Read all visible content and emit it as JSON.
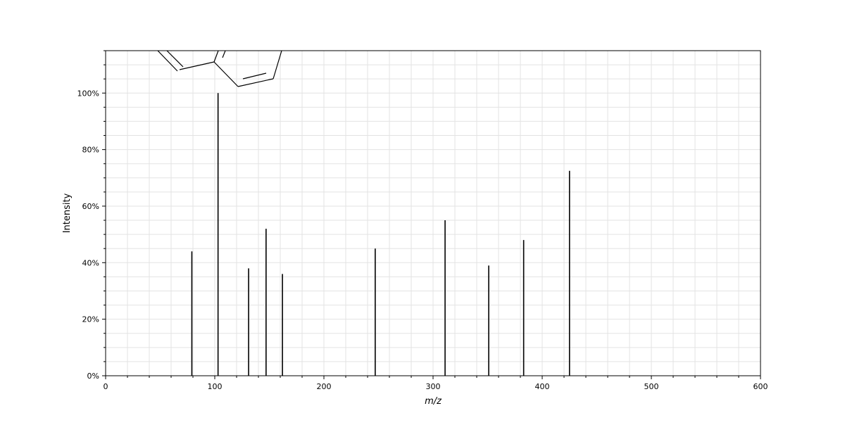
{
  "chart_data": {
    "type": "bar",
    "subtype": "mass-spectrum-stick",
    "xlabel": "m/z",
    "ylabel": "Intensity",
    "xlim": [
      0,
      600
    ],
    "ylim": [
      0,
      115
    ],
    "x_ticks": [
      0,
      100,
      200,
      300,
      400,
      500,
      600
    ],
    "x_tick_labels": [
      "0",
      "100",
      "200",
      "300",
      "400",
      "500",
      "600"
    ],
    "y_ticks": [
      0,
      20,
      40,
      60,
      80,
      100
    ],
    "y_tick_labels": [
      "0%",
      "20%",
      "40%",
      "60%",
      "80%",
      "100%"
    ],
    "grid": true,
    "peak_color": "#000000",
    "peaks": [
      {
        "mz": 79,
        "intensity": 44
      },
      {
        "mz": 103,
        "intensity": 100
      },
      {
        "mz": 131,
        "intensity": 38
      },
      {
        "mz": 147,
        "intensity": 52
      },
      {
        "mz": 162,
        "intensity": 36
      },
      {
        "mz": 247,
        "intensity": 45
      },
      {
        "mz": 311,
        "intensity": 55
      },
      {
        "mz": 351,
        "intensity": 39
      },
      {
        "mz": 383,
        "intensity": 48
      },
      {
        "mz": 425,
        "intensity": 72.5
      }
    ]
  }
}
